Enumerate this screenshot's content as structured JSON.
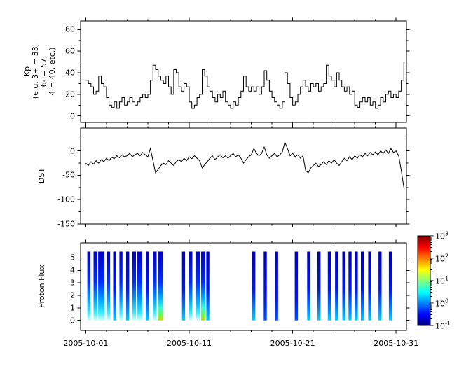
{
  "figure": {
    "background": "#ffffff",
    "frame_color": "#000000"
  },
  "x_axis": {
    "xlim": [
      -0.5,
      31
    ],
    "tick_days": [
      0,
      10,
      20,
      30
    ],
    "tick_labels": [
      "2005-10-01",
      "2005-10-11",
      "2005-10-21",
      "2005-10-31"
    ],
    "minor_step": 2
  },
  "chart_data": [
    {
      "type": "line",
      "subtype": "step",
      "ylabel_lines": [
        "Kp",
        "(e.g. 3+ = 33,",
        "6- = 57,",
        "4 = 40, etc.)"
      ],
      "ylim": [
        -6,
        88
      ],
      "yticks": [
        0,
        20,
        40,
        60,
        80
      ],
      "yticks_minor": [
        10,
        30,
        50,
        70
      ],
      "line_color": "#000000",
      "x_start_day": 0,
      "x_step_days": 0.25,
      "values": [
        33,
        30,
        27,
        20,
        23,
        37,
        30,
        27,
        17,
        10,
        8,
        13,
        7,
        13,
        17,
        10,
        13,
        17,
        13,
        10,
        13,
        17,
        20,
        17,
        20,
        33,
        47,
        43,
        37,
        33,
        30,
        37,
        27,
        20,
        43,
        40,
        27,
        23,
        30,
        27,
        13,
        7,
        10,
        17,
        20,
        43,
        37,
        27,
        23,
        17,
        13,
        20,
        17,
        23,
        13,
        10,
        7,
        13,
        10,
        17,
        23,
        37,
        27,
        23,
        27,
        23,
        27,
        20,
        27,
        42,
        33,
        23,
        17,
        13,
        10,
        7,
        13,
        40,
        30,
        17,
        10,
        13,
        20,
        27,
        33,
        27,
        23,
        30,
        27,
        30,
        23,
        27,
        30,
        47,
        37,
        33,
        27,
        40,
        33,
        27,
        23,
        27,
        20,
        23,
        10,
        8,
        13,
        17,
        13,
        17,
        10,
        13,
        7,
        10,
        17,
        13,
        20,
        23,
        17,
        20,
        17,
        23,
        33,
        50
      ]
    },
    {
      "type": "line",
      "ylabel": "DST",
      "ylim": [
        -150,
        47
      ],
      "yticks": [
        -150,
        -100,
        -50,
        0
      ],
      "yticks_minor": [
        -125,
        -75,
        -25,
        25
      ],
      "line_color": "#000000",
      "x_start_day": 0,
      "x_step_days": 0.25,
      "values": [
        -25,
        -30,
        -22,
        -27,
        -20,
        -25,
        -18,
        -22,
        -15,
        -20,
        -13,
        -16,
        -10,
        -14,
        -8,
        -12,
        -10,
        -5,
        -12,
        -8,
        -5,
        -10,
        -3,
        -8,
        -12,
        5,
        -20,
        -45,
        -38,
        -30,
        -25,
        -28,
        -20,
        -25,
        -30,
        -22,
        -18,
        -22,
        -15,
        -20,
        -12,
        -16,
        -10,
        -15,
        -20,
        -35,
        -28,
        -22,
        -15,
        -10,
        -18,
        -12,
        -8,
        -14,
        -10,
        -15,
        -10,
        -5,
        -12,
        -8,
        -15,
        -25,
        -18,
        -12,
        -8,
        5,
        -5,
        -10,
        -5,
        8,
        -8,
        -15,
        -10,
        -5,
        -12,
        -8,
        -2,
        18,
        5,
        -10,
        -5,
        -12,
        -8,
        -15,
        -10,
        -40,
        -45,
        -35,
        -30,
        -25,
        -32,
        -28,
        -22,
        -28,
        -20,
        -25,
        -18,
        -25,
        -30,
        -22,
        -15,
        -20,
        -12,
        -18,
        -10,
        -15,
        -8,
        -12,
        -5,
        -10,
        -3,
        -8,
        -2,
        -8,
        0,
        -5,
        2,
        -5,
        5,
        -3,
        0,
        -10,
        -40,
        -75
      ]
    },
    {
      "type": "heatmap",
      "ylabel": "Proton Flux",
      "ylim": [
        -0.8,
        6.2
      ],
      "yticks": [
        0,
        1,
        2,
        3,
        4,
        5
      ],
      "yticks_minor": [],
      "bar_y_range": [
        0,
        5.5
      ],
      "stripes": [
        {
          "x0": 0.15,
          "x1": 0.45,
          "style": "strong"
        },
        {
          "x0": 0.75,
          "x1": 1.1,
          "style": "strong"
        },
        {
          "x0": 1.2,
          "x1": 1.8,
          "style": "strong"
        },
        {
          "x0": 2.05,
          "x1": 2.35,
          "style": "strong"
        },
        {
          "x0": 2.65,
          "x1": 2.95,
          "style": "mild"
        },
        {
          "x0": 3.25,
          "x1": 3.55,
          "style": "strong"
        },
        {
          "x0": 3.9,
          "x1": 4.2,
          "style": "mild"
        },
        {
          "x0": 4.5,
          "x1": 4.85,
          "style": "strong"
        },
        {
          "x0": 4.95,
          "x1": 5.45,
          "style": "strong"
        },
        {
          "x0": 5.8,
          "x1": 6.1,
          "style": "mild"
        },
        {
          "x0": 6.5,
          "x1": 6.85,
          "style": "strong"
        },
        {
          "x0": 6.95,
          "x1": 7.45,
          "style": "green"
        },
        {
          "x0": 9.3,
          "x1": 9.6,
          "style": "mild"
        },
        {
          "x0": 9.95,
          "x1": 10.3,
          "style": "strong"
        },
        {
          "x0": 10.6,
          "x1": 11.05,
          "style": "strong"
        },
        {
          "x0": 11.15,
          "x1": 11.55,
          "style": "green"
        },
        {
          "x0": 11.65,
          "x1": 11.95,
          "style": "mild"
        },
        {
          "x0": 16.1,
          "x1": 16.4,
          "style": "mild"
        },
        {
          "x0": 17.2,
          "x1": 17.5,
          "style": "plain"
        },
        {
          "x0": 18.3,
          "x1": 18.6,
          "style": "plain"
        },
        {
          "x0": 20.2,
          "x1": 20.5,
          "style": "plain"
        },
        {
          "x0": 21.4,
          "x1": 21.7,
          "style": "mild"
        },
        {
          "x0": 22.4,
          "x1": 22.7,
          "style": "mild"
        },
        {
          "x0": 23.4,
          "x1": 23.7,
          "style": "mild"
        },
        {
          "x0": 24.1,
          "x1": 24.4,
          "style": "mild"
        },
        {
          "x0": 24.8,
          "x1": 25.1,
          "style": "mild"
        },
        {
          "x0": 25.4,
          "x1": 25.7,
          "style": "mild"
        },
        {
          "x0": 26.0,
          "x1": 26.3,
          "style": "mild"
        },
        {
          "x0": 26.6,
          "x1": 26.9,
          "style": "mild"
        },
        {
          "x0": 27.3,
          "x1": 27.6,
          "style": "mild"
        },
        {
          "x0": 28.3,
          "x1": 28.6,
          "style": "mild"
        },
        {
          "x0": 29.3,
          "x1": 29.6,
          "style": "mild"
        }
      ],
      "colorbar": {
        "scale": "log",
        "colormap": "jet",
        "base": "10",
        "tick_exponents": [
          -1,
          0,
          1,
          2,
          3
        ]
      }
    }
  ],
  "colors": {
    "line": "#000000",
    "jet_stops": [
      [
        0,
        "#000080"
      ],
      [
        0.12,
        "#0000ff"
      ],
      [
        0.37,
        "#00ffff"
      ],
      [
        0.62,
        "#ffff00"
      ],
      [
        0.87,
        "#ff0000"
      ],
      [
        1,
        "#800000"
      ]
    ],
    "stripe_styles": {
      "plain": [
        [
          "0%",
          "#0000b0"
        ],
        [
          "70%",
          "#0018e8"
        ],
        [
          "100%",
          "#0050ff"
        ]
      ],
      "mild": [
        [
          "0%",
          "#0000b0"
        ],
        [
          "55%",
          "#0018e8"
        ],
        [
          "82%",
          "#0080ff"
        ],
        [
          "100%",
          "#00ccff"
        ]
      ],
      "strong": [
        [
          "0%",
          "#0000c0"
        ],
        [
          "45%",
          "#0030ff"
        ],
        [
          "70%",
          "#00a0ff"
        ],
        [
          "88%",
          "#33e8ff"
        ],
        [
          "100%",
          "#ccffff"
        ]
      ],
      "green": [
        [
          "0%",
          "#0000c0"
        ],
        [
          "45%",
          "#0030ff"
        ],
        [
          "68%",
          "#00b0ff"
        ],
        [
          "82%",
          "#33ffe0"
        ],
        [
          "92%",
          "#66ff44"
        ],
        [
          "100%",
          "#ccdd00"
        ]
      ]
    }
  }
}
